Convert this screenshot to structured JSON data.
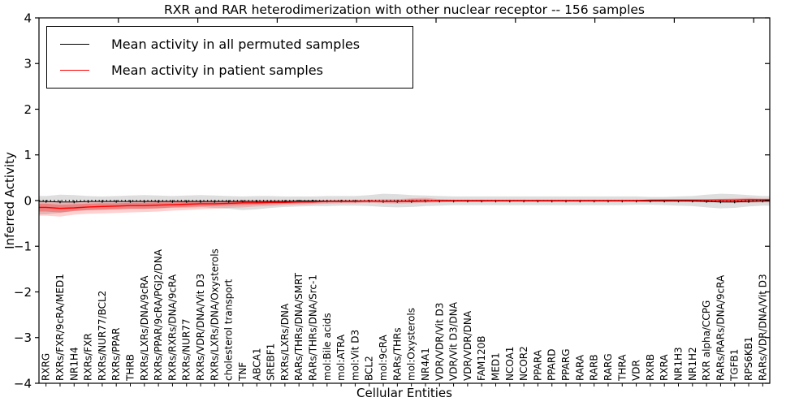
{
  "chart_data": {
    "type": "line",
    "title": "RXR and RAR heterodimerization with other nuclear receptor -- 156 samples",
    "xlabel": "Cellular Entities",
    "ylabel": "Inferred Activity",
    "ylim": [
      -4,
      4
    ],
    "yticks": [
      4,
      3,
      2,
      1,
      0,
      -1,
      -2,
      -3,
      -4
    ],
    "grid": false,
    "legend_position": "upper left",
    "legend": [
      {
        "label": "Mean activity in all permuted samples",
        "color": "#000000"
      },
      {
        "label": "Mean activity in patient samples",
        "color": "#ff0000"
      }
    ],
    "categories": [
      "RXRG",
      "RXRs/FXR/9cRA/MED1",
      "NR1H4",
      "RXRs/FXR",
      "RXRs/NUR77/BCL2",
      "RXRs/PPAR",
      "THRB",
      "RXRs/LXRs/DNA/9cRA",
      "RXRs/PPAR/9cRA/PGJ2/DNA",
      "RXRs/RXRs/DNA/9cRA",
      "RXRs/NUR77",
      "RXRs/VDR/DNA/Vit D3",
      "RXRs/LXRs/DNA/Oxysterols",
      "cholesterol transport",
      "TNF",
      "ABCA1",
      "SREBF1",
      "RXRs/LXRs/DNA",
      "RARs/THRs/DNA/SMRT",
      "RARs/THRs/DNA/Src-1",
      "mol:Bile acids",
      "mol:ATRA",
      "mol:Vit D3",
      "BCL2",
      "mol:9cRA",
      "RARs/THRs",
      "mol:Oxysterols",
      "NR4A1",
      "VDR/VDR/Vit D3",
      "VDR/Vit D3/DNA",
      "VDR/VDR/DNA",
      "FAM120B",
      "MED1",
      "NCOA1",
      "NCOR2",
      "PPARA",
      "PPARD",
      "PPARG",
      "RARA",
      "RARB",
      "RARG",
      "THRA",
      "VDR",
      "RXRB",
      "RXRA",
      "NR1H3",
      "NR1H2",
      "RXR alpha/CCPG",
      "RARs/RARs/DNA/9cRA",
      "TGFB1",
      "RPS6KB1",
      "RARs/VDR/DNA/Vit D3"
    ],
    "zero_line": 0,
    "series": [
      {
        "name": "Mean activity in all permuted samples",
        "color": "#000000",
        "values": [
          -0.02,
          -0.03,
          -0.03,
          -0.02,
          -0.02,
          -0.02,
          -0.02,
          -0.02,
          -0.02,
          -0.02,
          -0.02,
          -0.02,
          -0.02,
          -0.02,
          -0.02,
          -0.02,
          -0.02,
          -0.02,
          -0.01,
          -0.01,
          -0.01,
          -0.01,
          -0.01,
          -0.01,
          -0.02,
          -0.02,
          -0.02,
          -0.01,
          -0.01,
          -0.01,
          -0.01,
          -0.01,
          -0.01,
          -0.01,
          -0.01,
          -0.01,
          -0.01,
          -0.01,
          -0.01,
          -0.01,
          -0.01,
          -0.01,
          -0.01,
          -0.01,
          -0.01,
          -0.01,
          -0.01,
          -0.02,
          -0.03,
          -0.03,
          -0.02,
          -0.01
        ]
      },
      {
        "name": "Mean activity in patient samples",
        "color": "#ff0000",
        "values": [
          -0.15,
          -0.17,
          -0.16,
          -0.14,
          -0.13,
          -0.12,
          -0.11,
          -0.11,
          -0.1,
          -0.09,
          -0.08,
          -0.07,
          -0.07,
          -0.06,
          -0.05,
          -0.05,
          -0.04,
          -0.04,
          -0.03,
          -0.03,
          -0.02,
          -0.02,
          -0.02,
          -0.01,
          -0.02,
          -0.02,
          -0.01,
          -0.01,
          0.0,
          0.0,
          0.0,
          0.0,
          0.0,
          0.0,
          0.0,
          0.0,
          0.0,
          0.0,
          0.0,
          0.0,
          0.0,
          0.0,
          0.0,
          0.01,
          0.01,
          0.01,
          0.01,
          0.01,
          0.01,
          0.01,
          0.02,
          0.02
        ]
      }
    ],
    "bands": [
      {
        "name": "permuted-sample-range",
        "color": "#999999",
        "opacity": 0.32,
        "lo": [
          -0.3,
          -0.27,
          -0.23,
          -0.21,
          -0.2,
          -0.19,
          -0.18,
          -0.18,
          -0.17,
          -0.16,
          -0.16,
          -0.15,
          -0.16,
          -0.18,
          -0.21,
          -0.19,
          -0.16,
          -0.14,
          -0.13,
          -0.12,
          -0.12,
          -0.11,
          -0.11,
          -0.12,
          -0.14,
          -0.15,
          -0.14,
          -0.12,
          -0.11,
          -0.1,
          -0.1,
          -0.1,
          -0.1,
          -0.1,
          -0.1,
          -0.1,
          -0.1,
          -0.1,
          -0.1,
          -0.1,
          -0.1,
          -0.1,
          -0.09,
          -0.09,
          -0.1,
          -0.11,
          -0.12,
          -0.15,
          -0.17,
          -0.16,
          -0.13,
          -0.11
        ],
        "hi": [
          0.1,
          0.13,
          0.12,
          0.1,
          0.09,
          0.1,
          0.11,
          0.12,
          0.11,
          0.1,
          0.11,
          0.12,
          0.11,
          0.1,
          0.09,
          0.1,
          0.1,
          0.09,
          0.09,
          0.09,
          0.1,
          0.1,
          0.1,
          0.12,
          0.15,
          0.14,
          0.12,
          0.11,
          0.1,
          0.09,
          0.09,
          0.09,
          0.09,
          0.09,
          0.09,
          0.09,
          0.09,
          0.09,
          0.09,
          0.09,
          0.09,
          0.09,
          0.09,
          0.08,
          0.08,
          0.09,
          0.1,
          0.13,
          0.15,
          0.14,
          0.12,
          0.1
        ]
      },
      {
        "name": "patient-sample-range",
        "color": "#ff0000",
        "opacity": 0.18,
        "lo": [
          -0.33,
          -0.35,
          -0.31,
          -0.29,
          -0.28,
          -0.27,
          -0.26,
          -0.25,
          -0.24,
          -0.22,
          -0.21,
          -0.19,
          -0.18,
          -0.16,
          -0.15,
          -0.13,
          -0.12,
          -0.1,
          -0.09,
          -0.08,
          -0.07,
          -0.06,
          -0.06,
          -0.05,
          -0.06,
          -0.07,
          -0.06,
          -0.05,
          -0.04,
          -0.03,
          -0.03,
          -0.03,
          -0.02,
          -0.02,
          -0.02,
          -0.02,
          -0.02,
          -0.02,
          -0.02,
          -0.02,
          -0.02,
          -0.02,
          -0.02,
          -0.02,
          -0.02,
          -0.02,
          -0.03,
          -0.03,
          -0.04,
          -0.05,
          -0.05,
          -0.04
        ],
        "hi": [
          -0.02,
          -0.03,
          -0.02,
          -0.02,
          -0.01,
          -0.01,
          -0.01,
          0.0,
          0.0,
          0.0,
          0.0,
          0.0,
          0.0,
          0.0,
          0.01,
          0.01,
          0.01,
          0.01,
          0.01,
          0.01,
          0.01,
          0.02,
          0.02,
          0.02,
          0.03,
          0.03,
          0.05,
          0.06,
          0.03,
          0.02,
          0.02,
          0.02,
          0.02,
          0.02,
          0.02,
          0.02,
          0.02,
          0.02,
          0.02,
          0.02,
          0.02,
          0.02,
          0.02,
          0.02,
          0.03,
          0.03,
          0.03,
          0.03,
          0.04,
          0.05,
          0.06,
          0.05
        ]
      },
      {
        "name": "patient-sample-inner-range",
        "color": "#ff0000",
        "opacity": 0.28,
        "lo": [
          -0.24,
          -0.26,
          -0.23,
          -0.21,
          -0.2,
          -0.19,
          -0.18,
          -0.18,
          -0.17,
          -0.15,
          -0.14,
          -0.13,
          -0.12,
          -0.11,
          -0.1,
          -0.09,
          -0.08,
          -0.07,
          -0.06,
          -0.05,
          -0.04,
          -0.04,
          -0.04,
          -0.03,
          -0.04,
          -0.04,
          -0.03,
          -0.03,
          -0.02,
          -0.02,
          -0.01,
          -0.01,
          -0.01,
          -0.01,
          -0.01,
          -0.01,
          -0.01,
          -0.01,
          -0.01,
          -0.01,
          -0.01,
          -0.01,
          -0.01,
          -0.01,
          -0.01,
          -0.01,
          -0.01,
          -0.02,
          -0.02,
          -0.03,
          -0.02,
          -0.01
        ],
        "hi": [
          -0.07,
          -0.09,
          -0.08,
          -0.07,
          -0.06,
          -0.06,
          -0.05,
          -0.05,
          -0.04,
          -0.04,
          -0.03,
          -0.03,
          -0.03,
          -0.02,
          -0.02,
          -0.02,
          -0.01,
          -0.01,
          -0.01,
          0.0,
          0.0,
          0.0,
          0.0,
          0.01,
          0.01,
          0.01,
          0.03,
          0.03,
          0.01,
          0.01,
          0.01,
          0.01,
          0.01,
          0.01,
          0.01,
          0.01,
          0.01,
          0.01,
          0.01,
          0.01,
          0.01,
          0.01,
          0.01,
          0.02,
          0.02,
          0.02,
          0.02,
          0.02,
          0.03,
          0.03,
          0.04,
          0.03
        ]
      }
    ]
  }
}
